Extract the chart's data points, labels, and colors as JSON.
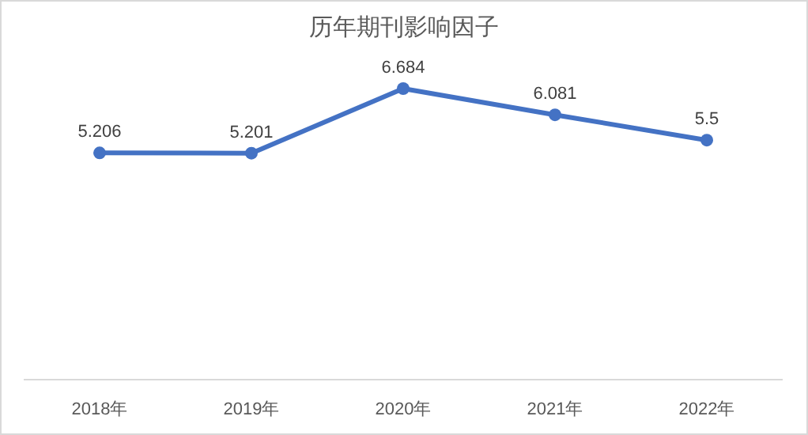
{
  "chart_data": {
    "type": "line",
    "title": "历年期刊影响因子",
    "categories": [
      "2018年",
      "2019年",
      "2020年",
      "2021年",
      "2022年"
    ],
    "series": [
      {
        "color": "#4472c4",
        "values": [
          5.206,
          5.201,
          6.684,
          6.081,
          5.5
        ]
      }
    ],
    "data_labels": true,
    "marker": "circle"
  }
}
